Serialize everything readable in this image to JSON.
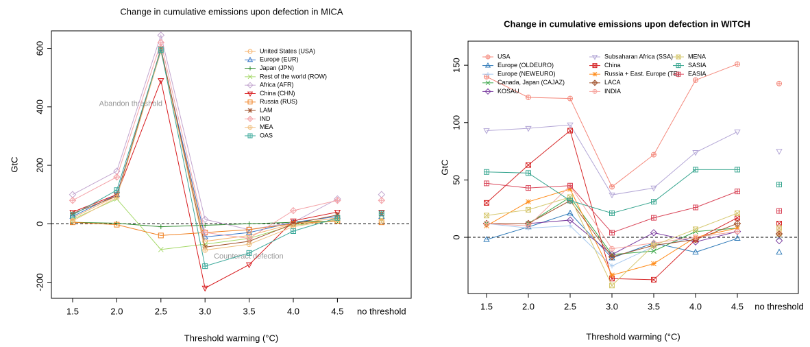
{
  "chart_data": [
    {
      "type": "line",
      "title": "Change in cumulative emissions upon defection in MICA",
      "x_label": "Threshold warming (°C)",
      "y_label": "GtC",
      "categories": [
        "1.5",
        "2.0",
        "2.5",
        "3.0",
        "3.5",
        "4.0",
        "4.5",
        "no threshold"
      ],
      "ylim": [
        -255,
        660
      ],
      "yticks": [
        -200,
        0,
        200,
        400,
        600
      ],
      "hline": 0,
      "annotations": [
        "Abandon threshold",
        "Counteract defection"
      ],
      "series": [
        {
          "name": "United States (USA)",
          "color": "#f6b26b",
          "marker": "circle",
          "values": [
            20,
            95,
            595,
            -60,
            -40,
            0,
            20,
            20
          ]
        },
        {
          "name": "Europe (EUR)",
          "color": "#3a78c9",
          "marker": "triangle",
          "values": [
            25,
            100,
            590,
            -45,
            -30,
            5,
            25,
            25
          ]
        },
        {
          "name": "Japan (JPN)",
          "color": "#2e8b2e",
          "marker": "plus",
          "values": [
            5,
            2,
            -10,
            -5,
            0,
            5,
            10,
            10
          ]
        },
        {
          "name": "Rest of the world (ROW)",
          "color": "#a6d96a",
          "marker": "cross",
          "values": [
            15,
            85,
            -88,
            -70,
            -50,
            -5,
            10,
            15
          ]
        },
        {
          "name": "Africa (AFR)",
          "color": "#c2a5cf",
          "marker": "diamond",
          "values": [
            100,
            180,
            645,
            15,
            -20,
            5,
            85,
            100
          ]
        },
        {
          "name": "China (CHN)",
          "color": "#d7191c",
          "marker": "triangle-down",
          "values": [
            40,
            100,
            490,
            -220,
            -140,
            10,
            40,
            40
          ]
        },
        {
          "name": "Russia (RUS)",
          "color": "#f08020",
          "marker": "square",
          "values": [
            5,
            -3,
            -40,
            -30,
            -20,
            0,
            10,
            5
          ]
        },
        {
          "name": "LAM",
          "color": "#a0522d",
          "marker": "star",
          "values": [
            35,
            95,
            600,
            -80,
            -60,
            0,
            30,
            35
          ]
        },
        {
          "name": "IND",
          "color": "#f4a3a8",
          "marker": "diamond-plus",
          "values": [
            80,
            160,
            620,
            -30,
            -50,
            45,
            80,
            80
          ]
        },
        {
          "name": "MEA",
          "color": "#f0c080",
          "marker": "circle-plus",
          "values": [
            10,
            90,
            590,
            -90,
            -70,
            -10,
            15,
            10
          ]
        },
        {
          "name": "OAS",
          "color": "#3aa89a",
          "marker": "square-plus",
          "values": [
            30,
            115,
            595,
            -145,
            -100,
            -25,
            20,
            35
          ]
        }
      ]
    },
    {
      "type": "line",
      "title": "Change in cumulative emissions upon defection in WITCH",
      "x_label": "Threshold warming (°C)",
      "y_label": "GtC",
      "categories": [
        "1.5",
        "2.0",
        "2.5",
        "3.0",
        "3.5",
        "4.0",
        "4.5",
        "no threshold"
      ],
      "ylim": [
        -49,
        171
      ],
      "yticks": [
        0,
        50,
        100,
        150
      ],
      "hline": 0,
      "series": [
        {
          "name": "USA",
          "color": "#f4877a",
          "marker": "circle-plus",
          "values": [
            140,
            122,
            121,
            44,
            72,
            137,
            151,
            134
          ]
        },
        {
          "name": "Europe (OLDEURO)",
          "color": "#2f7ab8",
          "marker": "triangle",
          "values": [
            -2,
            9,
            21,
            -18,
            -5,
            -13,
            -1,
            -13
          ]
        },
        {
          "name": "Europe (NEWEURO)",
          "color": "#a6c8ee",
          "marker": "plus",
          "values": [
            12,
            8,
            10,
            -25,
            -8,
            0,
            5,
            0
          ]
        },
        {
          "name": "Canada, Japan (CAJAZ)",
          "color": "#3aa648",
          "marker": "cross",
          "values": [
            12,
            12,
            35,
            -15,
            -12,
            5,
            8,
            0
          ]
        },
        {
          "name": "KOSAU",
          "color": "#7b3ea0",
          "marker": "diamond",
          "values": [
            12,
            12,
            15,
            -15,
            4,
            -4,
            5,
            -3
          ]
        },
        {
          "name": "Subsaharan Africa (SSA)",
          "color": "#b3a6d6",
          "marker": "triangle-down",
          "values": [
            93,
            95,
            98,
            37,
            43,
            74,
            92,
            75
          ]
        },
        {
          "name": "China",
          "color": "#d62728",
          "marker": "square-cross",
          "values": [
            30,
            63,
            93,
            -36,
            -37,
            -2,
            17,
            12
          ]
        },
        {
          "name": "Russia + East. Europe (TE)",
          "color": "#ff8c1a",
          "marker": "star",
          "values": [
            10,
            31,
            42,
            -33,
            -23,
            0,
            8,
            3
          ]
        },
        {
          "name": "LACA",
          "color": "#a0522d",
          "marker": "diamond-plus",
          "values": [
            12,
            12,
            32,
            -17,
            -7,
            -2,
            12,
            3
          ]
        },
        {
          "name": "INDIA",
          "color": "#f7a6a0",
          "marker": "circle-plus",
          "values": [
            12,
            10,
            45,
            -10,
            -5,
            0,
            5,
            8
          ]
        },
        {
          "name": "MENA",
          "color": "#d6c870",
          "marker": "square-cross",
          "values": [
            19,
            24,
            35,
            -42,
            -7,
            7,
            21,
            8
          ]
        },
        {
          "name": "SASIA",
          "color": "#36a58f",
          "marker": "square-plus",
          "values": [
            57,
            56,
            32,
            21,
            31,
            59,
            59,
            46
          ]
        },
        {
          "name": "EASIA",
          "color": "#d9475a",
          "marker": "square-plus",
          "values": [
            47,
            43,
            45,
            4,
            17,
            26,
            40,
            23
          ]
        }
      ]
    }
  ]
}
